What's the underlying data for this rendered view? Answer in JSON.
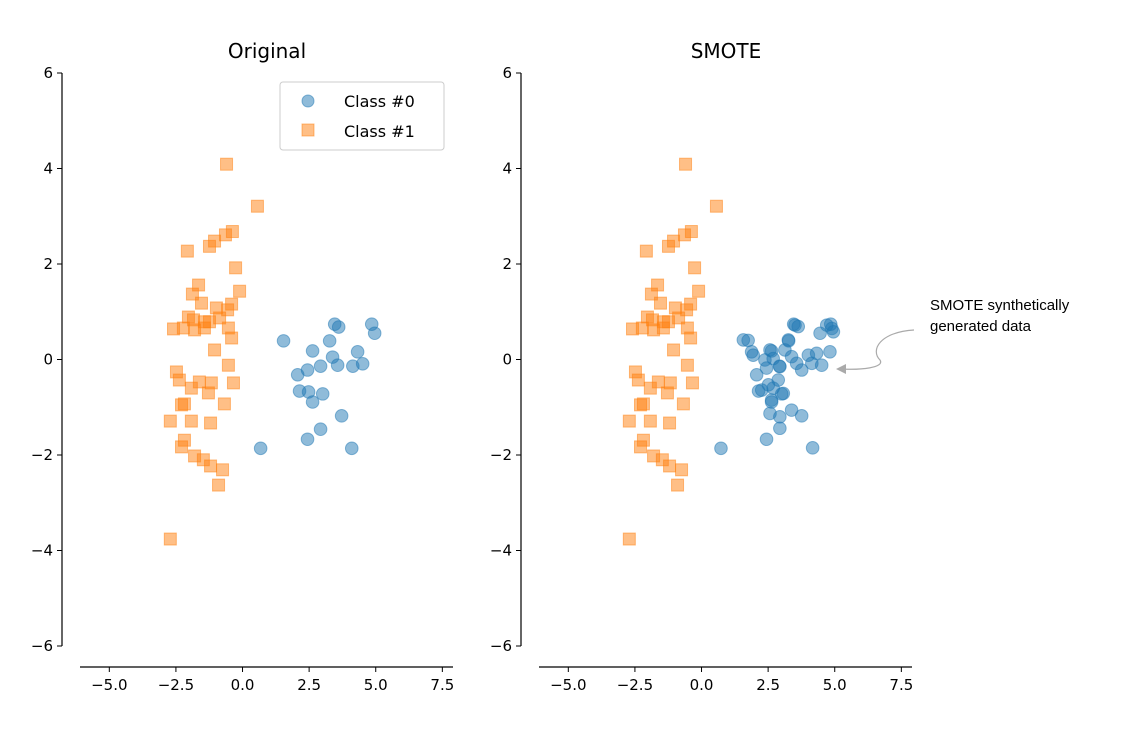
{
  "chart_data": [
    {
      "type": "scatter",
      "title": "Original",
      "xlim": [
        -6.1,
        7.9
      ],
      "ylim": [
        -6,
        6
      ],
      "xticks": [
        "−5.0",
        "−2.5",
        "0.0",
        "2.5",
        "5.0",
        "7.5"
      ],
      "xtick_values": [
        -5,
        -2.5,
        0,
        2.5,
        5,
        7.5
      ],
      "yticks": [
        "−6",
        "−4",
        "−2",
        "0",
        "2",
        "4",
        "6"
      ],
      "ytick_values": [
        -6,
        -4,
        -2,
        0,
        2,
        4,
        6
      ],
      "grid": false,
      "legend": {
        "placement": "top-right",
        "entries": [
          "Class #0",
          "Class #1"
        ]
      },
      "series": [
        {
          "name": "Class #0",
          "marker": "circle",
          "color": "#1f77b4",
          "points": [
            [
              1.54,
              0.39
            ],
            [
              3.46,
              0.74
            ],
            [
              3.61,
              0.68
            ],
            [
              4.85,
              0.74
            ],
            [
              4.96,
              0.55
            ],
            [
              3.27,
              0.39
            ],
            [
              2.63,
              0.18
            ],
            [
              4.32,
              0.16
            ],
            [
              3.38,
              0.05
            ],
            [
              2.93,
              -0.14
            ],
            [
              3.57,
              -0.12
            ],
            [
              4.14,
              -0.14
            ],
            [
              4.51,
              -0.09
            ],
            [
              2.44,
              -0.22
            ],
            [
              2.07,
              -0.32
            ],
            [
              2.14,
              -0.66
            ],
            [
              2.48,
              -0.68
            ],
            [
              3.01,
              -0.72
            ],
            [
              2.63,
              -0.89
            ],
            [
              3.72,
              -1.18
            ],
            [
              2.93,
              -1.46
            ],
            [
              2.44,
              -1.67
            ],
            [
              0.68,
              -1.86
            ],
            [
              4.1,
              -1.86
            ]
          ]
        },
        {
          "name": "Class #1",
          "marker": "square",
          "color": "#ff7f0e",
          "points": [
            [
              -0.6,
              4.09
            ],
            [
              0.56,
              3.21
            ],
            [
              -0.38,
              2.68
            ],
            [
              -0.64,
              2.61
            ],
            [
              -1.05,
              2.48
            ],
            [
              -1.24,
              2.37
            ],
            [
              -2.07,
              2.27
            ],
            [
              -0.26,
              1.92
            ],
            [
              -1.65,
              1.56
            ],
            [
              -1.88,
              1.37
            ],
            [
              -1.54,
              1.18
            ],
            [
              -0.11,
              1.43
            ],
            [
              -0.98,
              1.08
            ],
            [
              -0.41,
              1.16
            ],
            [
              -0.56,
              1.04
            ],
            [
              -2.03,
              0.89
            ],
            [
              -1.84,
              0.83
            ],
            [
              -1.43,
              0.79
            ],
            [
              -1.24,
              0.79
            ],
            [
              -0.86,
              0.87
            ],
            [
              -2.59,
              0.64
            ],
            [
              -2.22,
              0.66
            ],
            [
              -1.8,
              0.62
            ],
            [
              -1.43,
              0.66
            ],
            [
              -0.53,
              0.66
            ],
            [
              -0.41,
              0.45
            ],
            [
              -1.05,
              0.2
            ],
            [
              -0.53,
              -0.12
            ],
            [
              -2.48,
              -0.26
            ],
            [
              -2.37,
              -0.43
            ],
            [
              -1.62,
              -0.47
            ],
            [
              -1.17,
              -0.49
            ],
            [
              -0.34,
              -0.49
            ],
            [
              -1.92,
              -0.6
            ],
            [
              -1.28,
              -0.7
            ],
            [
              -2.29,
              -0.95
            ],
            [
              -2.18,
              -0.93
            ],
            [
              -0.68,
              -0.93
            ],
            [
              -2.71,
              -1.29
            ],
            [
              -1.92,
              -1.29
            ],
            [
              -1.2,
              -1.33
            ],
            [
              -2.18,
              -1.69
            ],
            [
              -2.29,
              -1.83
            ],
            [
              -1.8,
              -2.02
            ],
            [
              -1.47,
              -2.1
            ],
            [
              -1.2,
              -2.23
            ],
            [
              -0.75,
              -2.31
            ],
            [
              -0.9,
              -2.63
            ],
            [
              -2.71,
              -3.76
            ]
          ]
        }
      ]
    },
    {
      "type": "scatter",
      "title": "SMOTE",
      "xlim": [
        -6.1,
        7.9
      ],
      "ylim": [
        -6,
        6
      ],
      "xticks": [
        "−5.0",
        "−2.5",
        "0.0",
        "2.5",
        "5.0",
        "7.5"
      ],
      "xtick_values": [
        -5,
        -2.5,
        0,
        2.5,
        5,
        7.5
      ],
      "yticks": [
        "−6",
        "−4",
        "−2",
        "0",
        "2",
        "4",
        "6"
      ],
      "ytick_values": [
        -6,
        -4,
        -2,
        0,
        2,
        4,
        6
      ],
      "grid": false,
      "annotation": {
        "text_lines": [
          "SMOTE synthetically",
          "generated data"
        ],
        "color": "#aaaaaa",
        "points_to": [
          5.0,
          -0.25
        ]
      },
      "series": [
        {
          "name": "Class #0",
          "marker": "circle",
          "color": "#1f77b4",
          "points": [
            [
              3.51,
              0.72
            ],
            [
              3.63,
              0.69
            ],
            [
              4.7,
              0.72
            ],
            [
              4.89,
              0.65
            ],
            [
              4.45,
              0.55
            ],
            [
              4.95,
              0.58
            ],
            [
              1.57,
              0.41
            ],
            [
              1.75,
              0.4
            ],
            [
              3.26,
              0.41
            ],
            [
              1.88,
              0.16
            ],
            [
              1.94,
              0.09
            ],
            [
              2.57,
              0.2
            ],
            [
              3.13,
              0.2
            ],
            [
              3.38,
              0.06
            ],
            [
              4.01,
              0.09
            ],
            [
              4.32,
              0.13
            ],
            [
              4.82,
              0.16
            ],
            [
              2.38,
              -0.01
            ],
            [
              2.69,
              0.02
            ],
            [
              3.57,
              -0.08
            ],
            [
              3.76,
              -0.22
            ],
            [
              4.14,
              -0.08
            ],
            [
              4.51,
              -0.12
            ],
            [
              2.07,
              -0.32
            ],
            [
              2.44,
              -0.18
            ],
            [
              2.94,
              -0.15
            ],
            [
              2.88,
              -0.43
            ],
            [
              2.26,
              -0.64
            ],
            [
              2.51,
              -0.53
            ],
            [
              2.69,
              -0.6
            ],
            [
              3.07,
              -0.71
            ],
            [
              2.63,
              -0.85
            ],
            [
              2.57,
              -1.13
            ],
            [
              2.94,
              -1.2
            ],
            [
              3.38,
              -1.06
            ],
            [
              3.76,
              -1.18
            ],
            [
              2.94,
              -1.44
            ],
            [
              2.44,
              -1.67
            ],
            [
              0.73,
              -1.86
            ],
            [
              4.17,
              -1.85
            ],
            [
              3.46,
              0.74
            ],
            [
              4.85,
              0.74
            ],
            [
              3.27,
              0.39
            ],
            [
              2.63,
              0.18
            ],
            [
              2.93,
              -0.14
            ],
            [
              2.14,
              -0.66
            ],
            [
              3.01,
              -0.72
            ],
            [
              2.63,
              -0.89
            ]
          ]
        },
        {
          "name": "Class #1",
          "marker": "square",
          "color": "#ff7f0e",
          "points": [
            [
              -0.6,
              4.09
            ],
            [
              0.56,
              3.21
            ],
            [
              -0.38,
              2.68
            ],
            [
              -0.64,
              2.61
            ],
            [
              -1.05,
              2.48
            ],
            [
              -1.24,
              2.37
            ],
            [
              -2.07,
              2.27
            ],
            [
              -0.26,
              1.92
            ],
            [
              -1.65,
              1.56
            ],
            [
              -1.88,
              1.37
            ],
            [
              -1.54,
              1.18
            ],
            [
              -0.11,
              1.43
            ],
            [
              -0.98,
              1.08
            ],
            [
              -0.41,
              1.16
            ],
            [
              -0.56,
              1.04
            ],
            [
              -2.03,
              0.89
            ],
            [
              -1.84,
              0.83
            ],
            [
              -1.43,
              0.79
            ],
            [
              -1.24,
              0.79
            ],
            [
              -0.86,
              0.87
            ],
            [
              -2.59,
              0.64
            ],
            [
              -2.22,
              0.66
            ],
            [
              -1.8,
              0.62
            ],
            [
              -1.43,
              0.66
            ],
            [
              -0.53,
              0.66
            ],
            [
              -0.41,
              0.45
            ],
            [
              -1.05,
              0.2
            ],
            [
              -0.53,
              -0.12
            ],
            [
              -2.48,
              -0.26
            ],
            [
              -2.37,
              -0.43
            ],
            [
              -1.62,
              -0.47
            ],
            [
              -1.17,
              -0.49
            ],
            [
              -0.34,
              -0.49
            ],
            [
              -1.92,
              -0.6
            ],
            [
              -1.28,
              -0.7
            ],
            [
              -2.29,
              -0.95
            ],
            [
              -2.18,
              -0.93
            ],
            [
              -0.68,
              -0.93
            ],
            [
              -2.71,
              -1.29
            ],
            [
              -1.92,
              -1.29
            ],
            [
              -1.2,
              -1.33
            ],
            [
              -2.18,
              -1.69
            ],
            [
              -2.29,
              -1.83
            ],
            [
              -1.8,
              -2.02
            ],
            [
              -1.47,
              -2.1
            ],
            [
              -1.2,
              -2.23
            ],
            [
              -0.75,
              -2.31
            ],
            [
              -0.9,
              -2.63
            ],
            [
              -2.71,
              -3.76
            ]
          ]
        }
      ]
    }
  ]
}
